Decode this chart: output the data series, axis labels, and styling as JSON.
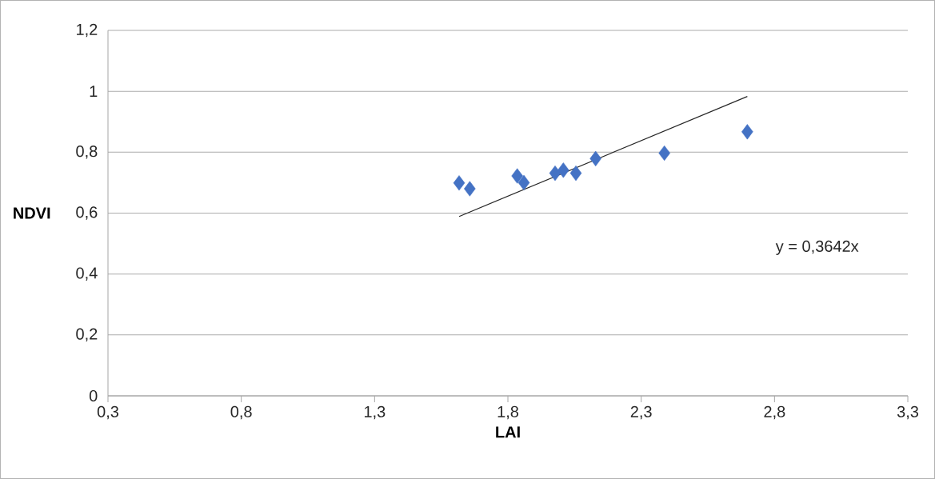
{
  "chart_data": {
    "type": "scatter",
    "xlabel": "LAI",
    "ylabel": "NDVI",
    "xlim": [
      0.3,
      3.3
    ],
    "ylim": [
      0,
      1.2
    ],
    "xticks": [
      {
        "value": 0.3,
        "label": "0,3"
      },
      {
        "value": 0.8,
        "label": "0,8"
      },
      {
        "value": 1.3,
        "label": "1,3"
      },
      {
        "value": 1.8,
        "label": "1,8"
      },
      {
        "value": 2.3,
        "label": "2,3"
      },
      {
        "value": 2.8,
        "label": "2,8"
      },
      {
        "value": 3.3,
        "label": "3,3"
      }
    ],
    "yticks": [
      0,
      {
        "value": 0.2,
        "label": "0,2"
      },
      {
        "value": 0.4,
        "label": "0,4"
      },
      {
        "value": 0.6,
        "label": "0,6"
      },
      {
        "value": 0.8,
        "label": "0,8"
      },
      1,
      {
        "value": 1.2,
        "label": "1,2"
      }
    ],
    "grid": "y",
    "marker": "diamond",
    "series": [
      {
        "color": "#4472c4",
        "x": [
          1.617,
          1.657,
          1.835,
          1.86,
          1.977,
          2.008,
          2.055,
          2.129,
          2.387,
          2.698
        ],
        "values": [
          0.699,
          0.68,
          0.722,
          0.7,
          0.731,
          0.741,
          0.731,
          0.779,
          0.797,
          0.867
        ]
      },
      {
        "type": "line",
        "color": "#262626",
        "marker": "none",
        "line_style": "solid",
        "x": [
          1.617,
          2.698
        ],
        "values": [
          0.589,
          0.983
        ]
      }
    ],
    "annotations": [
      "y = 0,3642x"
    ]
  }
}
